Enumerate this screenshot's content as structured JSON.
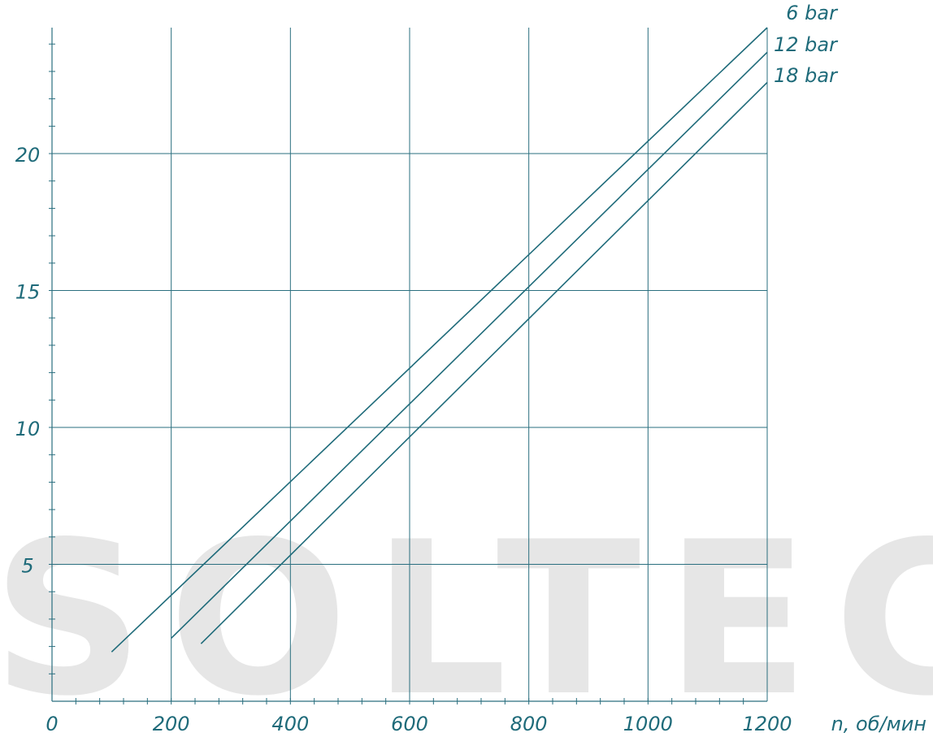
{
  "chart_data": {
    "type": "line",
    "title": "",
    "xlabel": "n, об/мин",
    "ylabel": "",
    "xlim": [
      0,
      1200
    ],
    "ylim": [
      0,
      24.6
    ],
    "x_ticks": [
      0,
      200,
      400,
      600,
      800,
      1000,
      1200
    ],
    "x_tick_labels": [
      "0",
      "200",
      "400",
      "600",
      "800",
      "1000",
      "1200"
    ],
    "y_ticks": [
      5,
      10,
      15,
      20
    ],
    "y_tick_labels": [
      "5",
      "10",
      "15",
      "20"
    ],
    "x_minor_step": 40,
    "y_minor_step": 1,
    "grid": true,
    "legend": "right-of-line-ends",
    "series": [
      {
        "name": "6 bar",
        "x": [
          100,
          1200
        ],
        "y": [
          1.8,
          24.6
        ]
      },
      {
        "name": "12 bar",
        "x": [
          200,
          1200
        ],
        "y": [
          2.3,
          23.7
        ]
      },
      {
        "name": "18 bar",
        "x": [
          250,
          1200
        ],
        "y": [
          2.1,
          22.6
        ]
      }
    ],
    "colors": {
      "line": "#1f6b7a",
      "grid": "#2a6f7f",
      "text": "#1f6b7a",
      "watermark": "#e6e6e6"
    }
  },
  "watermark": "SOLTEC"
}
